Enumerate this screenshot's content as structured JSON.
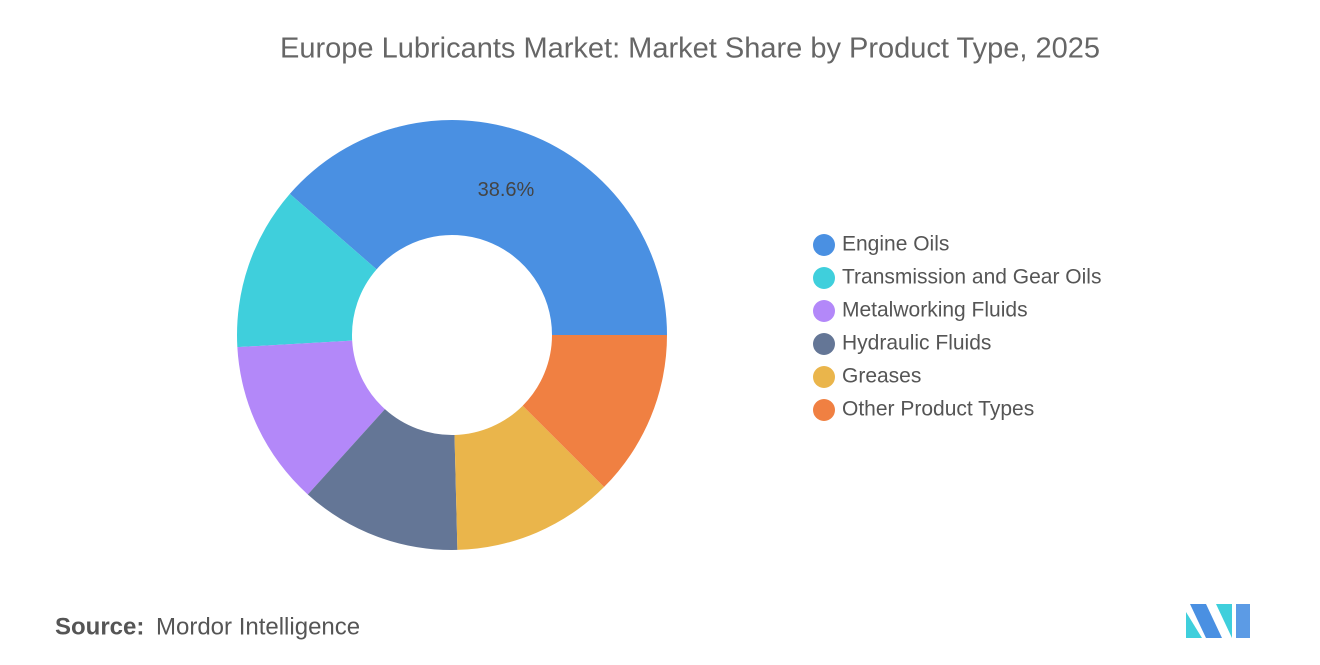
{
  "chart_data": {
    "type": "donut",
    "title": "Europe Lubricants Market: Market Share by Product Type, 2025",
    "categories": [
      "Engine Oils",
      "Transmission and Gear Oils",
      "Metalworking Fluids",
      "Hydraulic Fluids",
      "Greases",
      "Other Product Types"
    ],
    "values": [
      38.6,
      12.3,
      12.4,
      12.1,
      12.1,
      12.5
    ],
    "value_labels": [
      "38.6%",
      null,
      null,
      null,
      null,
      null
    ],
    "colors": [
      "#4a90e2",
      "#3fcfdc",
      "#b388f9",
      "#647696",
      "#eab54b",
      "#f08042"
    ],
    "legend": "right",
    "source_label": "Source:",
    "source": "Mordor Intelligence"
  }
}
